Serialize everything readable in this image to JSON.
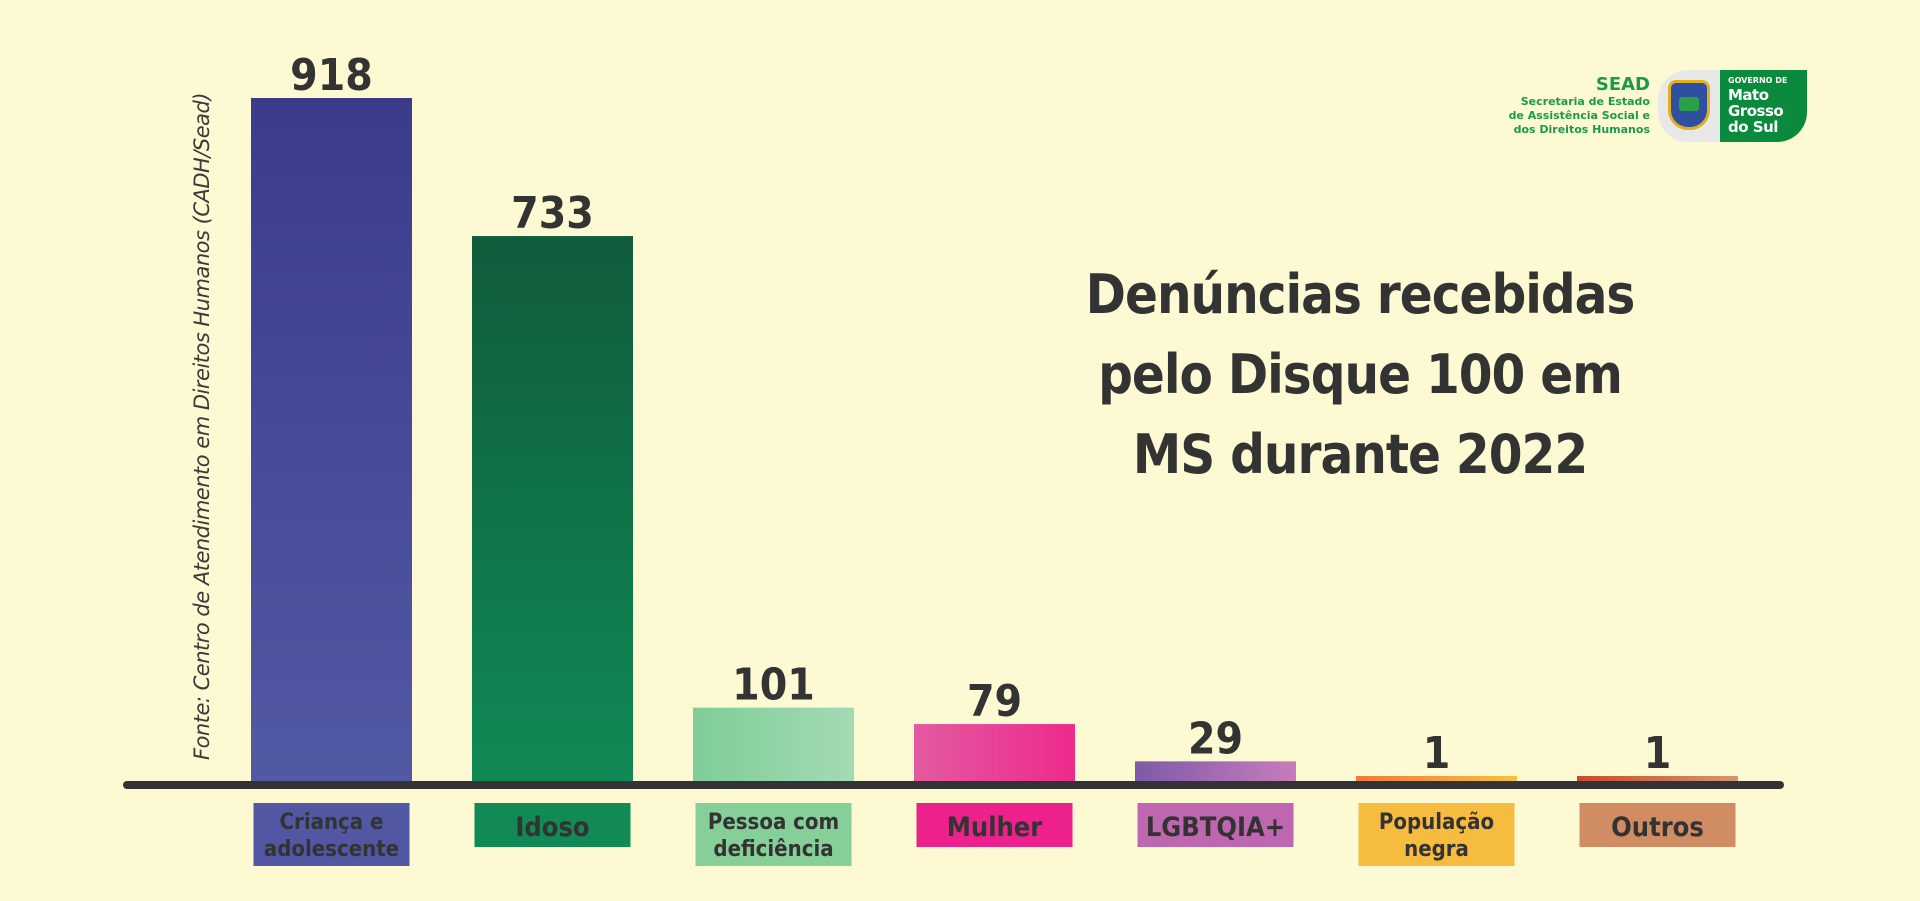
{
  "title_lines": [
    "Denúncias recebidas",
    "pelo Disque 100 em",
    "MS durante 2022"
  ],
  "source": "Fonte: Centro de Atendimento em Direitos Humanos (CADH/Sead)",
  "logo": {
    "acronym": "SEAD",
    "lines": [
      "Secretaria de Estado",
      "de Assistência Social e",
      "dos Direitos Humanos"
    ],
    "gov_small": "GOVERNO DE",
    "gov_big": [
      "Mato",
      "Grosso",
      "do Sul"
    ]
  },
  "chart_data": {
    "type": "bar",
    "title": "Denúncias recebidas pelo Disque 100 em MS durante 2022",
    "categories": [
      [
        "Criança e",
        "adolescente"
      ],
      [
        "Idoso"
      ],
      [
        "Pessoa com",
        "deficiência"
      ],
      [
        "Mulher"
      ],
      [
        "LGBTQIA+"
      ],
      [
        "População",
        "negra"
      ],
      [
        "Outros"
      ]
    ],
    "values": [
      918,
      733,
      101,
      79,
      29,
      1,
      1
    ],
    "colors": {
      "bars_top": [
        "#3b3b8c",
        "#105c3c",
        "#7fcd98",
        "#e35aa0",
        "#7d5aa8",
        "#f07a3a",
        "#c94a2e"
      ],
      "bars_bottom": [
        "#5259a5",
        "#108a55",
        "#a3dab5",
        "#ee2a8c",
        "#c87cbc",
        "#f8c040",
        "#d4976e"
      ],
      "labels": [
        "#5157a3",
        "#118a55",
        "#86cf99",
        "#ed218b",
        "#be66b0",
        "#f6bc40",
        "#d08c62"
      ]
    },
    "axis_color": "#333333",
    "grid": false,
    "legend": "none"
  }
}
